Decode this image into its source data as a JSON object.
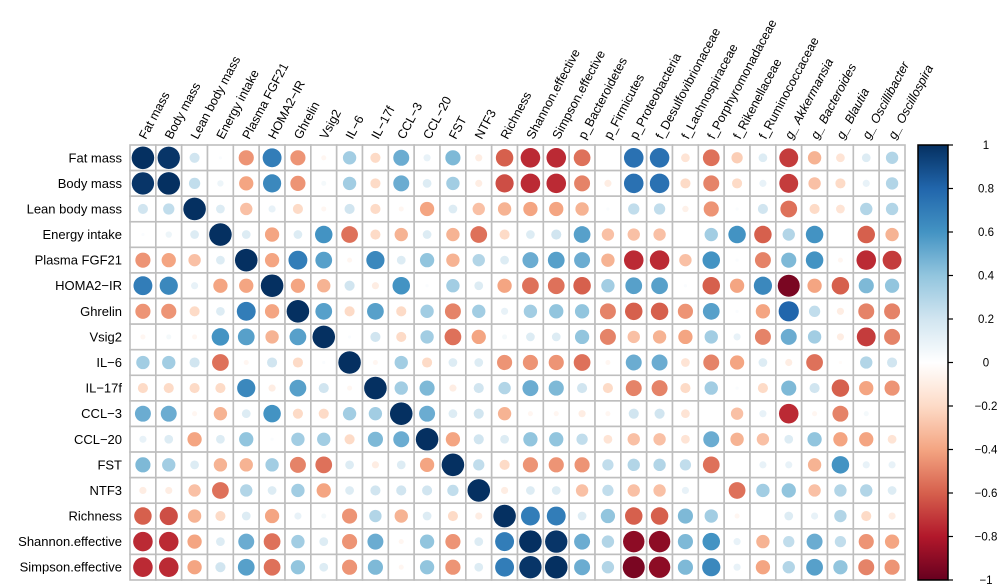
{
  "chart_data": {
    "type": "heatmap",
    "style": "corrplot-circle",
    "rows": [
      "Fat mass",
      "Body mass",
      "Lean body mass",
      "Energy intake",
      "Plasma FGF21",
      "HOMA2−IR",
      "Ghrelin",
      "Vsig2",
      "IL−6",
      "IL−17f",
      "CCL−3",
      "CCL−20",
      "FST",
      "NTF3",
      "Richness",
      "Shannon.effective",
      "Simpson.effective"
    ],
    "columns": [
      "Fat mass",
      "Body mass",
      "Lean body mass",
      "Energy intake",
      "Plasma FGF21",
      "HOMA2−IR",
      "Ghrelin",
      "Vsig2",
      "IL−6",
      "IL−17f",
      "CCL−3",
      "CCL−20",
      "FST",
      "NTF3",
      "Richness",
      "Shannon.effective",
      "Simpson.effective",
      "p_Bacteroidetes",
      "p_Firmicutes",
      "p_Proteobacteria",
      "f_Desulfovibrionaceae",
      "f_Lachnospiraceae",
      "f_Porphyromonadaceae",
      "f_Rikenellaceae",
      "f_Ruminococcaceae",
      "g_ Akkermansia",
      "g_ Bacteroides",
      "g_ Blautia",
      "g_ Oscillibacter",
      "g_ Oscillospira"
    ],
    "italic_columns": [
      "g_ Akkermansia",
      "g_ Bacteroides",
      "g_ Blautia",
      "g_ Oscillibacter",
      "g_ Oscillospira"
    ],
    "values": [
      [
        1,
        0.98,
        0.2,
        0.02,
        -0.45,
        0.7,
        -0.45,
        -0.05,
        0.35,
        -0.2,
        0.5,
        0.1,
        0.45,
        -0.1,
        -0.6,
        -0.75,
        -0.75,
        -0.55,
        0,
        0.75,
        0.75,
        -0.15,
        -0.55,
        -0.25,
        0.15,
        -0.7,
        -0.35,
        -0.15,
        0.15,
        0.3
      ],
      [
        0.98,
        1,
        0.25,
        0.08,
        -0.4,
        0.65,
        -0.45,
        0.05,
        0.35,
        -0.2,
        0.5,
        0.15,
        0.35,
        -0.1,
        -0.65,
        -0.75,
        -0.75,
        -0.5,
        -0.1,
        0.75,
        0.75,
        -0.2,
        -0.5,
        -0.2,
        0.1,
        -0.7,
        -0.3,
        -0.2,
        0.1,
        0.3
      ],
      [
        0.2,
        0.25,
        1,
        0.15,
        -0.3,
        0.1,
        -0.2,
        -0.05,
        0.2,
        -0.2,
        -0.05,
        -0.4,
        0.15,
        -0.3,
        -0.35,
        -0.4,
        -0.4,
        -0.35,
        0.02,
        0.25,
        0.25,
        -0.08,
        -0.45,
        0.02,
        0.2,
        -0.55,
        -0.2,
        -0.15,
        0.3,
        0.3
      ],
      [
        0.02,
        0.08,
        0.15,
        1,
        0.15,
        -0.4,
        0.15,
        0.6,
        -0.55,
        -0.2,
        -0.35,
        0.15,
        -0.35,
        -0.55,
        -0.2,
        0.15,
        0.2,
        0.55,
        -0.3,
        -0.3,
        -0.3,
        0,
        0.35,
        0.6,
        -0.6,
        0.3,
        0.6,
        0,
        -0.6,
        -0.35
      ],
      [
        -0.45,
        -0.4,
        -0.3,
        0.15,
        1,
        -0.4,
        0.7,
        0.55,
        -0.05,
        0.65,
        0.15,
        0.4,
        -0.35,
        0.3,
        0.15,
        0.5,
        0.55,
        0.5,
        -0.35,
        -0.75,
        -0.75,
        -0.3,
        0.6,
        0.02,
        -0.5,
        0.45,
        0.6,
        -0.05,
        -0.75,
        -0.7
      ],
      [
        0.7,
        0.65,
        0.1,
        -0.4,
        -0.4,
        1,
        -0.4,
        -0.35,
        0.2,
        -0.1,
        0.6,
        0.02,
        0.35,
        0.15,
        -0.4,
        -0.55,
        -0.55,
        -0.6,
        0.35,
        0.55,
        0.55,
        0.02,
        -0.6,
        -0.4,
        0.65,
        -0.95,
        -0.4,
        -0.6,
        0.45,
        0.4
      ],
      [
        -0.45,
        -0.45,
        -0.2,
        0.15,
        0.7,
        -0.4,
        1,
        0.55,
        -0.2,
        0.55,
        -0.2,
        0.35,
        -0.5,
        0.35,
        0.1,
        0.35,
        0.4,
        0.4,
        -0.5,
        -0.6,
        -0.6,
        -0.45,
        0.55,
        0.02,
        -0.4,
        0.8,
        0.25,
        -0.1,
        -0.5,
        -0.5
      ],
      [
        -0.05,
        0.05,
        -0.05,
        0.6,
        0.55,
        -0.35,
        0.55,
        1,
        0.02,
        0.2,
        -0.2,
        0.35,
        -0.55,
        -0.4,
        0.05,
        0.15,
        0.15,
        0.4,
        -0.5,
        -0.3,
        -0.35,
        -0.4,
        0.35,
        0.1,
        -0.5,
        0.5,
        0.35,
        -0.1,
        -0.7,
        -0.5
      ],
      [
        0.35,
        0.35,
        0.2,
        -0.55,
        -0.05,
        0.2,
        -0.2,
        0.02,
        1,
        -0.05,
        0.35,
        -0.2,
        0.15,
        0.15,
        -0.45,
        -0.45,
        -0.45,
        -0.55,
        -0.05,
        0.5,
        0.5,
        -0.15,
        -0.5,
        -0.4,
        0.15,
        -0.1,
        -0.55,
        -0.02,
        0.3,
        0.2
      ],
      [
        -0.2,
        -0.2,
        -0.2,
        -0.2,
        0.65,
        -0.1,
        0.55,
        0.2,
        -0.05,
        1,
        0.35,
        0.45,
        -0.1,
        0.2,
        0.3,
        0.5,
        0.45,
        0.2,
        -0.2,
        -0.5,
        -0.5,
        -0.2,
        0.35,
        0.02,
        -0.2,
        0.45,
        0.2,
        -0.6,
        -0.4,
        -0.45
      ],
      [
        0.5,
        0.5,
        -0.05,
        -0.35,
        0.15,
        0.6,
        -0.2,
        -0.2,
        0.35,
        0.35,
        1,
        0.5,
        0.15,
        0.2,
        -0.35,
        -0.05,
        -0.05,
        -0.1,
        -0.05,
        0.2,
        0.2,
        -0.15,
        0,
        -0.3,
        0.1,
        -0.75,
        -0.05,
        -0.5,
        0.05,
        0
      ],
      [
        0.1,
        0.15,
        -0.4,
        0.15,
        0.4,
        0.02,
        0.35,
        0.35,
        -0.2,
        0.45,
        0.5,
        1,
        -0.4,
        0.2,
        0.15,
        0.4,
        0.4,
        0.25,
        -0.15,
        -0.3,
        -0.3,
        -0.15,
        0.5,
        -0.35,
        -0.3,
        0.15,
        0.4,
        -0.4,
        -0.4,
        -0.15
      ],
      [
        0.45,
        0.35,
        0.15,
        -0.35,
        -0.35,
        0.35,
        -0.5,
        -0.55,
        0.15,
        -0.1,
        0.15,
        -0.4,
        1,
        0.25,
        -0.2,
        -0.45,
        -0.45,
        -0.45,
        0.25,
        0.3,
        0.3,
        0.25,
        -0.55,
        0,
        0.1,
        0.1,
        -0.35,
        0.6,
        0.1,
        0.1
      ],
      [
        -0.1,
        -0.1,
        -0.3,
        -0.55,
        0.3,
        0.15,
        0.35,
        -0.4,
        0.15,
        0.2,
        0.2,
        0.2,
        0.25,
        1,
        -0.1,
        0.15,
        0.15,
        -0.3,
        0.25,
        -0.3,
        -0.3,
        0.1,
        0,
        -0.55,
        0.35,
        0.4,
        -0.3,
        0.3,
        0.3,
        0.15
      ],
      [
        -0.6,
        -0.65,
        -0.35,
        -0.2,
        0.15,
        -0.4,
        0.1,
        0.05,
        -0.45,
        0.3,
        -0.35,
        0.15,
        -0.2,
        -0.1,
        1,
        0.7,
        0.7,
        0.15,
        0.4,
        -0.6,
        -0.6,
        0.45,
        0.35,
        -0.05,
        0,
        0.15,
        0.1,
        0.3,
        -0.2,
        -0.1
      ],
      [
        -0.75,
        -0.75,
        -0.4,
        0.15,
        0.5,
        -0.55,
        0.35,
        0.15,
        -0.45,
        0.5,
        -0.05,
        0.4,
        -0.45,
        0.15,
        0.7,
        1,
        0.98,
        0.5,
        0.3,
        -0.9,
        -0.9,
        0.45,
        0.6,
        0.1,
        -0.35,
        0.25,
        0.5,
        0.25,
        -0.45,
        -0.4
      ],
      [
        -0.75,
        -0.75,
        -0.4,
        0.2,
        0.55,
        -0.55,
        0.4,
        0.15,
        -0.45,
        0.45,
        -0.05,
        0.4,
        -0.45,
        0.15,
        0.7,
        0.98,
        1,
        0.5,
        0.3,
        -0.95,
        -0.9,
        0.45,
        0.65,
        0.1,
        -0.4,
        0.3,
        0.55,
        0.4,
        -0.5,
        -0.45
      ]
    ],
    "range": [
      -1,
      1
    ],
    "legend": {
      "placement": "right",
      "ticks": [
        "1",
        "0.8",
        "0.6",
        "0.4",
        "0.2",
        "0",
        "−0.2",
        "−0.4",
        "−0.6",
        "−0.8",
        "−1"
      ],
      "tick_values": [
        1,
        0.8,
        0.6,
        0.4,
        0.2,
        0,
        -0.2,
        -0.4,
        -0.6,
        -0.8,
        -1
      ]
    },
    "palette": [
      "#67001F",
      "#B2182B",
      "#D6604D",
      "#F4A582",
      "#FDDBC7",
      "#FFFFFF",
      "#D1E5F0",
      "#92C5DE",
      "#4393C3",
      "#2166AC",
      "#053061"
    ],
    "grid_color": "#BEBEBE"
  }
}
